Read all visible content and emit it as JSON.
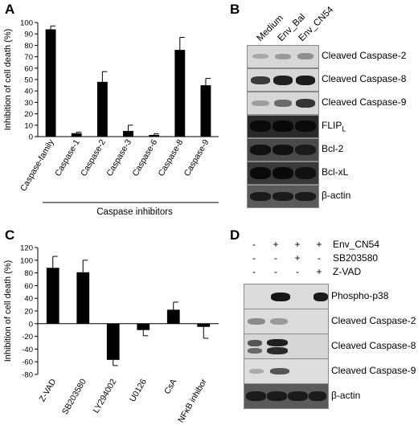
{
  "panels": {
    "a": {
      "letter": "A"
    },
    "b": {
      "letter": "B"
    },
    "c": {
      "letter": "C"
    },
    "d": {
      "letter": "D"
    }
  },
  "chart_data": [
    {
      "type": "bar",
      "panel": "A",
      "ylabel": "Inhibition of cell death (%)",
      "xlabel": "Caspase inhibitors",
      "ylim": [
        0,
        100
      ],
      "yticks": [
        0,
        10,
        20,
        30,
        40,
        50,
        60,
        70,
        80,
        90,
        100
      ],
      "categories": [
        "Caspase-family",
        "Caspase-1",
        "Caspase-2",
        "Caspase-3",
        "Caspase-6",
        "Caspase-8",
        "Caspase-9"
      ],
      "values": [
        94,
        3,
        48,
        5,
        1.5,
        76,
        45
      ],
      "errors": [
        3,
        1,
        9,
        5,
        1,
        11,
        6
      ]
    },
    {
      "type": "bar",
      "panel": "C",
      "ylabel": "Inhibition of cell death (%)",
      "ylim": [
        -80,
        120
      ],
      "yticks": [
        -80,
        -60,
        -40,
        -20,
        0,
        20,
        40,
        60,
        80,
        100,
        120
      ],
      "categories": [
        "Z-VAD",
        "SB203580",
        "LY294002",
        "U0126",
        "CsA",
        "NFκB inhibor"
      ],
      "values": [
        88,
        81,
        -57,
        -10,
        22,
        -5
      ],
      "errors": [
        18,
        19,
        9,
        9,
        12,
        18
      ]
    }
  ],
  "blot_b": {
    "lanes": [
      "Medium",
      "Env_Bal",
      "Env_CN54"
    ],
    "rows": [
      "Cleaved Caspase-2",
      "Cleaved Caspase-8",
      "Cleaved Caspase-9",
      "FLIP",
      "Bcl-2",
      "Bcl-xL",
      "β-actin"
    ],
    "flip_subscript": "L"
  },
  "blot_d": {
    "treatments": [
      {
        "name": "Env_CN54",
        "signs": [
          "-",
          "+",
          "+",
          "+"
        ]
      },
      {
        "name": "SB203580",
        "signs": [
          "-",
          "-",
          "+",
          "-"
        ]
      },
      {
        "name": "Z-VAD",
        "signs": [
          "-",
          "-",
          "-",
          "+"
        ]
      }
    ],
    "rows": [
      "Phospho-p38",
      "Cleaved Caspase-2",
      "Cleaved Caspase-8",
      "Cleaved Caspase-9",
      "β-actin"
    ]
  }
}
